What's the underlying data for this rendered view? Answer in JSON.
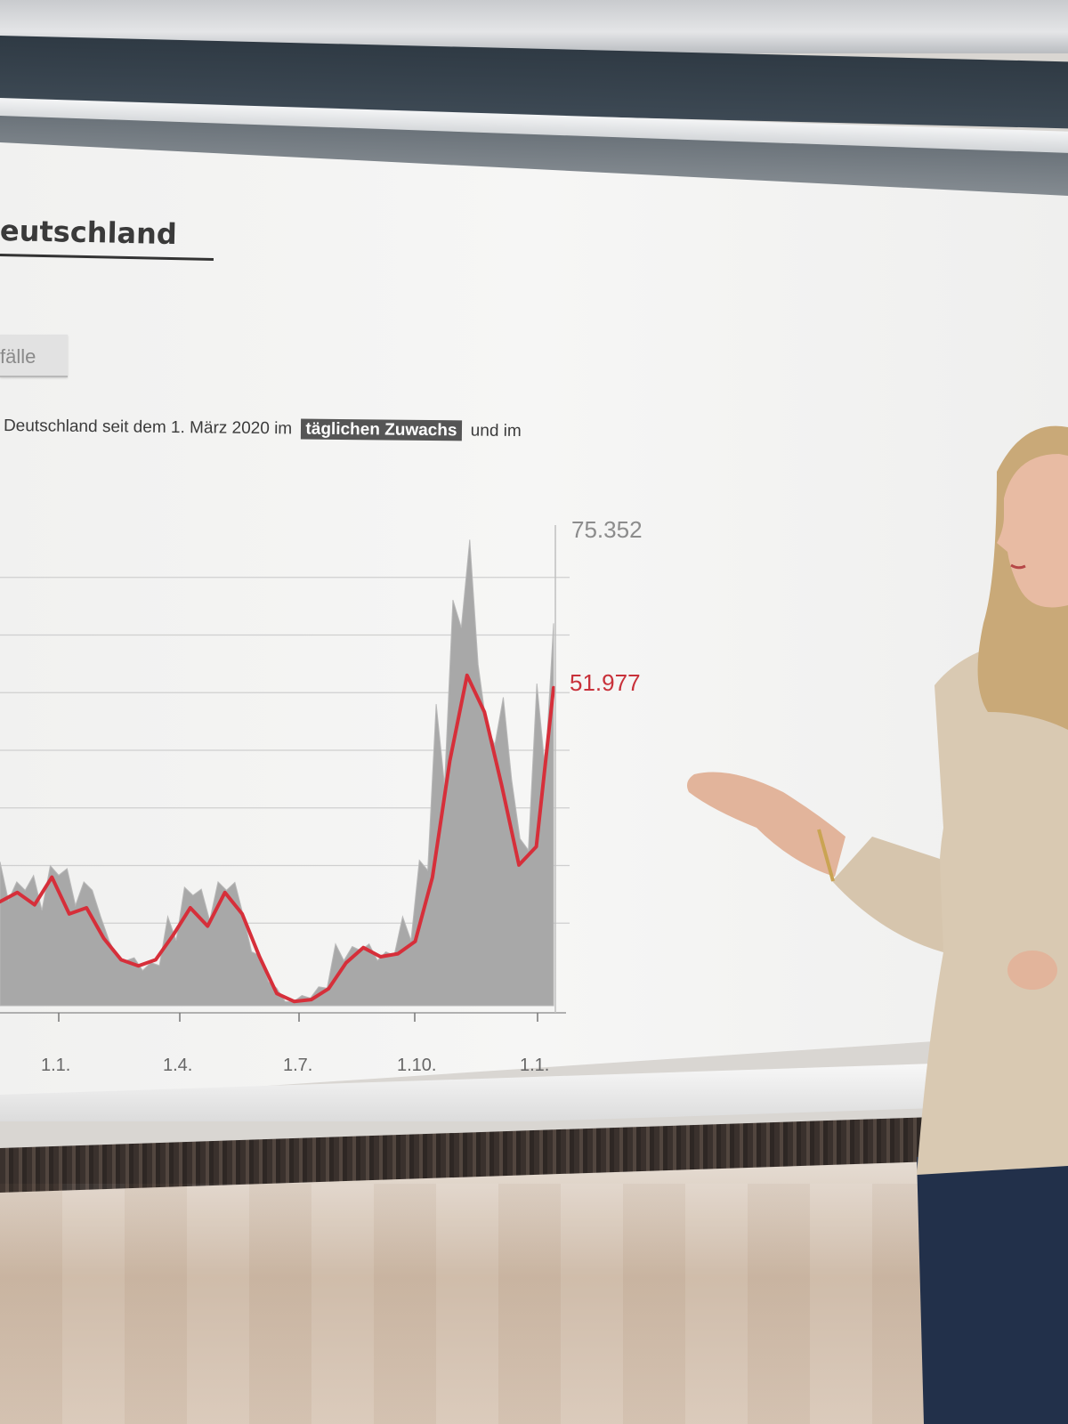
{
  "screen": {
    "title": "eutschland",
    "tab_label": "fälle",
    "subtitle_before": "Deutschland seit dem 1. März 2020 im",
    "subtitle_highlight": "täglichen Zuwachs",
    "subtitle_after": "und im"
  },
  "chart_data": {
    "type": "area",
    "x_ticks": [
      "1.1.",
      "1.4.",
      "1.7.",
      "1.10.",
      "1.1."
    ],
    "annotations": {
      "peak_value": "75.352",
      "average_value": "51.977"
    },
    "series": [
      {
        "values": [
          21000,
          23000,
          19000,
          26000,
          20000,
          23000,
          13000,
          9000,
          7000,
          8000,
          13000,
          22000,
          17000,
          23000,
          18000,
          10000,
          3500,
          800,
          1500,
          3500,
          9000,
          11000,
          9000,
          10000,
          13000,
          27000,
          44000,
          75352,
          68000,
          52000,
          45000,
          31000,
          47000,
          71000
        ],
        "color": "#a8a8a8"
      },
      {
        "values": [
          17000,
          18500,
          16500,
          21000,
          15000,
          16000,
          11000,
          7500,
          6500,
          7500,
          11500,
          16000,
          13000,
          18500,
          15000,
          8000,
          2000,
          700,
          1000,
          2800,
          7000,
          9500,
          8000,
          8500,
          10500,
          21000,
          40000,
          54000,
          48000,
          36000,
          23000,
          26000,
          51977
        ],
        "color": "#d62f3a"
      }
    ]
  }
}
